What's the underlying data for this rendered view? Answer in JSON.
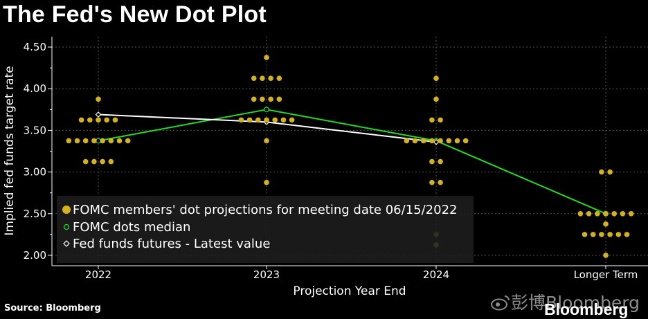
{
  "title": "The Fed's New Dot Plot",
  "source": "Source: Bloomberg",
  "watermark": {
    "cn": "彭博Bloomberg",
    "en": "Bloomberg"
  },
  "colors": {
    "background": "#000000",
    "dots": "#d4b21b",
    "median_line": "#22dd22",
    "futures_line": "#ffffff",
    "grid": "#555555",
    "legend_bg": "#1e1e1e"
  },
  "chart_data": {
    "type": "scatter",
    "title": "The Fed's New Dot Plot",
    "xlabel": "Projection Year End",
    "ylabel": "Implied fed funds target rate",
    "categories": [
      "2022",
      "2023",
      "2024",
      "Longer Term"
    ],
    "ylim": [
      1.875,
      4.625
    ],
    "yticks": [
      "4.50",
      "4.00",
      "3.50",
      "3.00",
      "2.50",
      "2.00"
    ],
    "grid": true,
    "legend_placement": "bottom-left",
    "legend": [
      "FOMC members' dot projections for meeting date 06/15/2022",
      "FOMC dots median",
      "Fed funds futures - Latest value"
    ],
    "dots": [
      {
        "category": "2022",
        "levels": [
          {
            "rate": 3.875,
            "count": 1
          },
          {
            "rate": 3.625,
            "count": 5
          },
          {
            "rate": 3.375,
            "count": 8
          },
          {
            "rate": 3.125,
            "count": 4
          }
        ]
      },
      {
        "category": "2023",
        "levels": [
          {
            "rate": 4.375,
            "count": 1
          },
          {
            "rate": 4.125,
            "count": 4
          },
          {
            "rate": 3.875,
            "count": 4
          },
          {
            "rate": 3.625,
            "count": 7
          },
          {
            "rate": 3.375,
            "count": 1
          },
          {
            "rate": 2.875,
            "count": 1
          }
        ]
      },
      {
        "category": "2024",
        "levels": [
          {
            "rate": 4.125,
            "count": 1
          },
          {
            "rate": 3.875,
            "count": 1
          },
          {
            "rate": 3.625,
            "count": 2
          },
          {
            "rate": 3.375,
            "count": 8
          },
          {
            "rate": 3.125,
            "count": 2
          },
          {
            "rate": 2.875,
            "count": 2
          },
          {
            "rate": 2.25,
            "count": 1
          },
          {
            "rate": 2.125,
            "count": 1
          }
        ]
      },
      {
        "category": "Longer Term",
        "levels": [
          {
            "rate": 3.0,
            "count": 2
          },
          {
            "rate": 2.5,
            "count": 7
          },
          {
            "rate": 2.375,
            "count": 1
          },
          {
            "rate": 2.25,
            "count": 6
          },
          {
            "rate": 2.0,
            "count": 1
          }
        ]
      }
    ],
    "series": [
      {
        "name": "FOMC dots median",
        "values": [
          3.375,
          3.75,
          3.375,
          2.5
        ]
      },
      {
        "name": "Fed funds futures - Latest value",
        "values": [
          3.69,
          3.6,
          3.36,
          null
        ]
      }
    ]
  }
}
